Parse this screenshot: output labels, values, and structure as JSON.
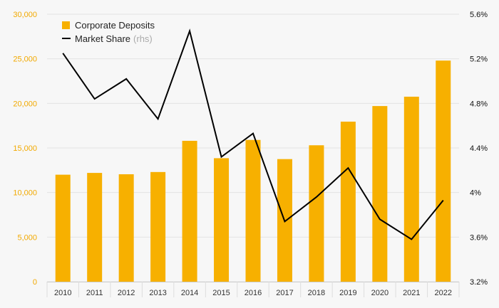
{
  "colors": {
    "background": "#f7f7f7",
    "bar": "#f7b000",
    "line": "#000000",
    "left_tick": "#f2a900",
    "right_tick": "#111111",
    "grid": "#e3e3e3"
  },
  "chart_data": {
    "type": "bar",
    "categories": [
      "2010",
      "2011",
      "2012",
      "2013",
      "2014",
      "2015",
      "2016",
      "2017",
      "2018",
      "2019",
      "2020",
      "2021",
      "2022"
    ],
    "series": [
      {
        "name": "Corporate Deposits",
        "type": "bar",
        "axis": "left",
        "values": [
          12000,
          12200,
          12050,
          12300,
          15800,
          13850,
          15900,
          13750,
          15300,
          17950,
          19700,
          20750,
          24800
        ]
      },
      {
        "name": "Market Share",
        "name_suffix": "(rhs)",
        "type": "line",
        "axis": "right",
        "values": [
          5.25,
          4.84,
          5.02,
          4.66,
          5.45,
          4.32,
          4.53,
          3.74,
          3.96,
          4.22,
          3.76,
          3.58,
          3.93
        ]
      }
    ],
    "left_axis": {
      "range": [
        0,
        30000
      ],
      "ticks": [
        0,
        5000,
        10000,
        15000,
        20000,
        25000,
        30000
      ],
      "tick_labels": [
        "0",
        "5,000",
        "10,000",
        "15,000",
        "20,000",
        "25,000",
        "30,000"
      ]
    },
    "right_axis": {
      "range": [
        3.2,
        5.6
      ],
      "ticks": [
        3.2,
        3.6,
        4.0,
        4.4,
        4.8,
        5.2,
        5.6
      ],
      "tick_labels": [
        "3.2%",
        "3.6%",
        "4%",
        "4.4%",
        "4.8%",
        "5.2%",
        "5.6%"
      ]
    },
    "grid": "horizontal",
    "legend_position": "top-left"
  }
}
